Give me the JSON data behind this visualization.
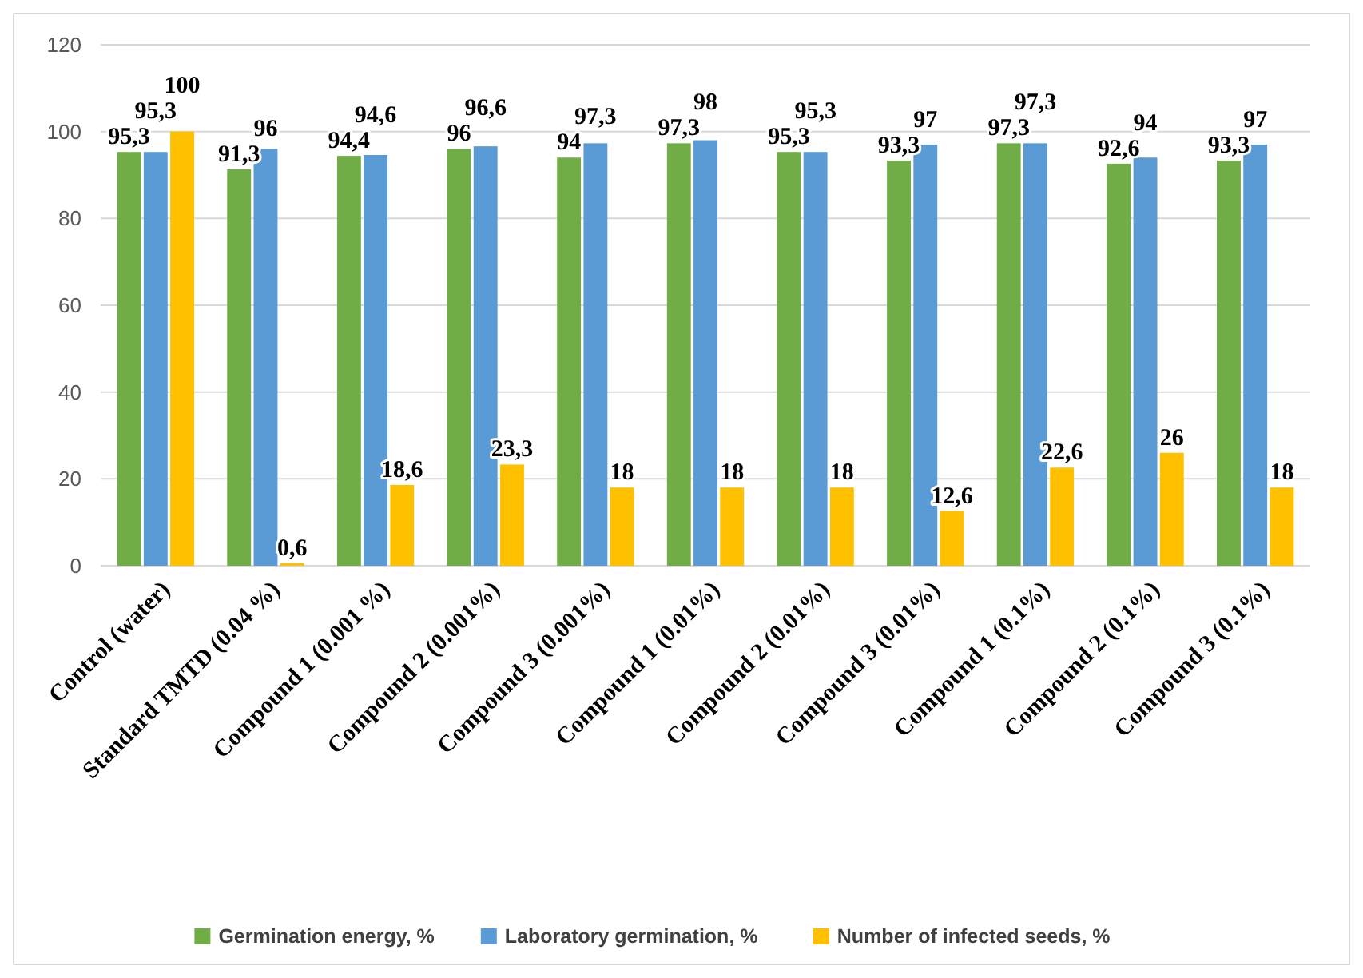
{
  "chart_data": {
    "type": "bar",
    "categories": [
      "Control (water)",
      "Standard TMTD (0.04 %)",
      "Compound 1 (0.001 %)",
      "Compound 2 (0.001%)",
      "Compound 3 (0.001%)",
      "Compound 1 (0.01%)",
      "Compound 2 (0.01%)",
      "Compound 3 (0.01%)",
      "Compound 1 (0.1%)",
      "Compound 2 (0.1%)",
      "Compound 3 (0.1%)"
    ],
    "series": [
      {
        "name": "Germination energy, %",
        "color": "#70ad47",
        "values": [
          95.3,
          91.3,
          94.4,
          96,
          94,
          97.3,
          95.3,
          93.3,
          97.3,
          92.6,
          93.3
        ],
        "value_labels": [
          "95,3",
          "91,3",
          "94,4",
          "96",
          "94",
          "97,3",
          "95,3",
          "93,3",
          "97,3",
          "92,6",
          "93,3"
        ]
      },
      {
        "name": "Laboratory germination, %",
        "color": "#5b9bd5",
        "values": [
          95.3,
          96,
          94.6,
          96.6,
          97.3,
          98,
          95.3,
          97,
          97.3,
          94,
          97
        ],
        "value_labels": [
          "95,3",
          "96",
          "94,6",
          "96,6",
          "97,3",
          "98",
          "95,3",
          "97",
          "97,3",
          "94",
          "97"
        ]
      },
      {
        "name": "Number of infected seeds, %",
        "color": "#ffc000",
        "values": [
          100,
          0.6,
          18.6,
          23.3,
          18,
          18,
          18,
          12.6,
          22.6,
          26,
          18
        ],
        "value_labels": [
          "100",
          "0,6",
          "18,6",
          "23,3",
          "18",
          "18",
          "18",
          "12,6",
          "22,6",
          "26",
          "18"
        ]
      }
    ],
    "ylim": [
      0,
      120
    ],
    "yticks": [
      0,
      20,
      40,
      60,
      80,
      100,
      120
    ],
    "grid": "y",
    "legend": "bottom"
  }
}
